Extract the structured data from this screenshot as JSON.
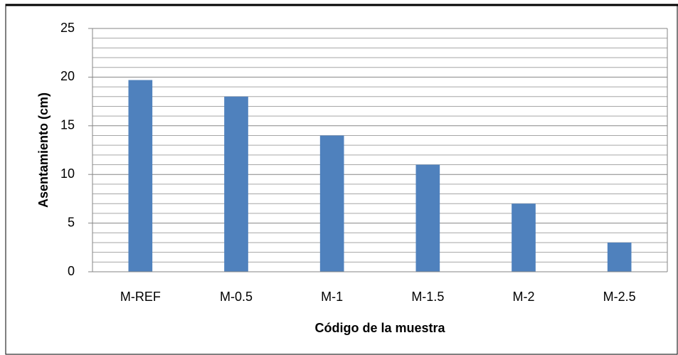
{
  "chart_data": {
    "type": "bar",
    "categories": [
      "M-REF",
      "M-0.5",
      "M-1",
      "M-1.5",
      "M-2",
      "M-2.5"
    ],
    "values": [
      19.7,
      18,
      14,
      11,
      7,
      3
    ],
    "color": "#4f81bd",
    "xlabel": "Código de la muestra",
    "ylabel": "Asentamiento (cm)",
    "ylim": [
      0,
      25
    ],
    "yticks": [
      0,
      5,
      10,
      15,
      20,
      25
    ],
    "minor_yticks": [
      1,
      2,
      3,
      4,
      6,
      7,
      8,
      9,
      11,
      12,
      13,
      14,
      16,
      17,
      18,
      19,
      21,
      22,
      23,
      24
    ],
    "grid": true
  }
}
